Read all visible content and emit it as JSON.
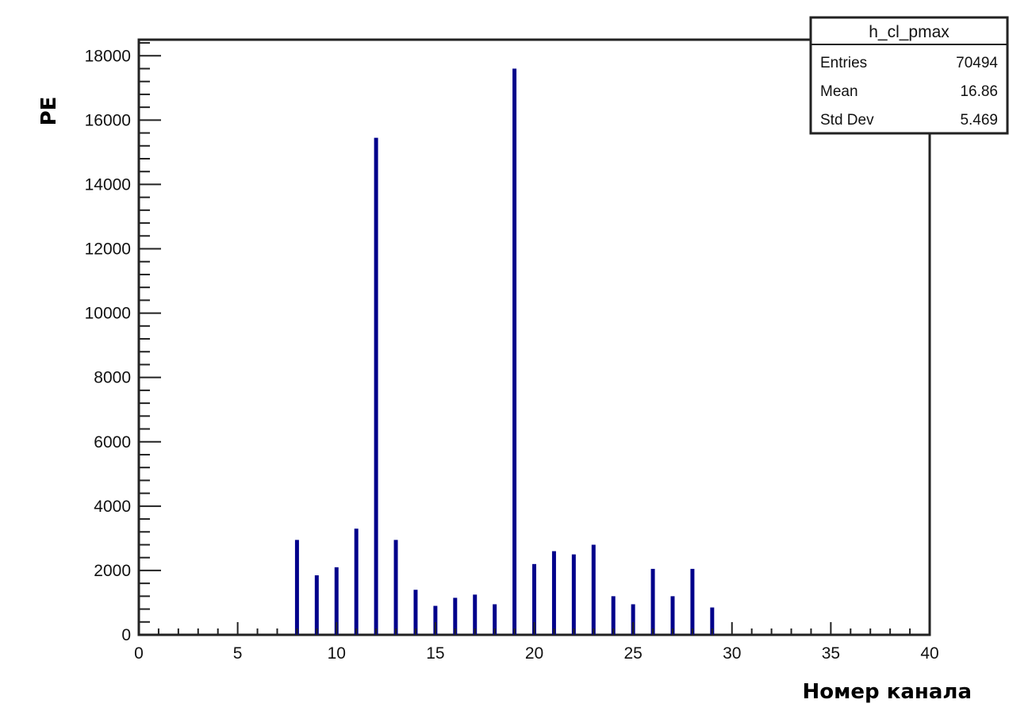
{
  "chart_data": {
    "type": "bar",
    "xlabel": "Номер канала",
    "ylabel": "PE",
    "xlim": [
      0,
      40
    ],
    "ylim": [
      0,
      18500
    ],
    "x_ticks": [
      0,
      5,
      10,
      15,
      20,
      25,
      30,
      35,
      40
    ],
    "y_ticks": [
      0,
      2000,
      4000,
      6000,
      8000,
      10000,
      12000,
      14000,
      16000,
      18000
    ],
    "grid": false,
    "bar_color": "#00008b",
    "stats_box": {
      "title": "h_cl_pmax",
      "rows": [
        {
          "label": "Entries",
          "value": "70494"
        },
        {
          "label": "Mean",
          "value": "16.86"
        },
        {
          "label": "Std Dev",
          "value": "5.469"
        }
      ]
    },
    "bins": [
      {
        "x": 8,
        "value": 2950
      },
      {
        "x": 9,
        "value": 1850
      },
      {
        "x": 10,
        "value": 2100
      },
      {
        "x": 11,
        "value": 3300
      },
      {
        "x": 12,
        "value": 15450
      },
      {
        "x": 13,
        "value": 2950
      },
      {
        "x": 14,
        "value": 1400
      },
      {
        "x": 15,
        "value": 900
      },
      {
        "x": 16,
        "value": 1150
      },
      {
        "x": 17,
        "value": 1250
      },
      {
        "x": 18,
        "value": 950
      },
      {
        "x": 19,
        "value": 17600
      },
      {
        "x": 20,
        "value": 2200
      },
      {
        "x": 21,
        "value": 2600
      },
      {
        "x": 22,
        "value": 2500
      },
      {
        "x": 23,
        "value": 2800
      },
      {
        "x": 24,
        "value": 1200
      },
      {
        "x": 25,
        "value": 950
      },
      {
        "x": 26,
        "value": 2050
      },
      {
        "x": 27,
        "value": 1200
      },
      {
        "x": 28,
        "value": 2050
      },
      {
        "x": 29,
        "value": 850
      }
    ]
  }
}
